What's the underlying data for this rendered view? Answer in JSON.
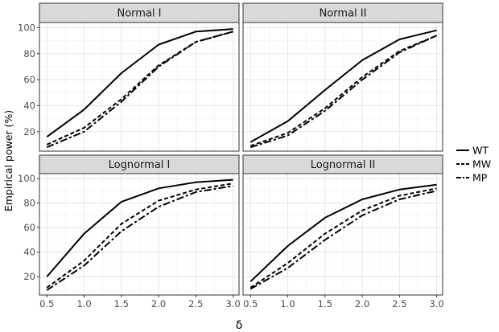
{
  "chart_data": {
    "type": "line",
    "xlabel": "δ",
    "ylabel": "Empirical power (%)",
    "x": [
      0.5,
      1.0,
      1.5,
      2.0,
      2.5,
      3.0
    ],
    "x_tick_labels": [
      "0.5",
      "1.0",
      "1.5",
      "2.0",
      "2.5",
      "3.0"
    ],
    "y_ticks": [
      20,
      40,
      60,
      80,
      100
    ],
    "ylim": [
      5,
      104
    ],
    "xlim": [
      0.4,
      3.08
    ],
    "grid": true,
    "legend_position": "right",
    "legend": [
      {
        "name": "WT",
        "dash": "solid"
      },
      {
        "name": "MW",
        "dash": "dashed"
      },
      {
        "name": "MP",
        "dash": "longdash"
      }
    ],
    "panels": [
      {
        "title": "Normal I",
        "series": [
          {
            "name": "WT",
            "values": [
              16,
              37,
              65,
              87,
              97,
              99
            ]
          },
          {
            "name": "MW",
            "values": [
              10,
              23,
              45,
              71,
              89,
              97
            ]
          },
          {
            "name": "MP",
            "values": [
              8,
              20,
              43,
              70,
              89,
              97
            ]
          }
        ]
      },
      {
        "title": "Normal II",
        "series": [
          {
            "name": "WT",
            "values": [
              12,
              28,
              52,
              75,
              91,
              98
            ]
          },
          {
            "name": "MW",
            "values": [
              9,
              19,
              38,
              62,
              82,
              94
            ]
          },
          {
            "name": "MP",
            "values": [
              8,
              17,
              36,
              60,
              81,
              94
            ]
          }
        ]
      },
      {
        "title": "Lognormal I",
        "series": [
          {
            "name": "WT",
            "values": [
              20,
              55,
              81,
              92,
              97,
              99
            ]
          },
          {
            "name": "MW",
            "values": [
              11,
              33,
              63,
              82,
              91,
              96
            ]
          },
          {
            "name": "MP",
            "values": [
              9,
              29,
              57,
              77,
              89,
              94
            ]
          }
        ]
      },
      {
        "title": "Lognormal II",
        "series": [
          {
            "name": "WT",
            "values": [
              16,
              45,
              68,
              83,
              91,
              95
            ]
          },
          {
            "name": "MW",
            "values": [
              11,
              31,
              55,
              74,
              86,
              92
            ]
          },
          {
            "name": "MP",
            "values": [
              10,
              27,
              50,
              70,
              83,
              90
            ]
          }
        ]
      }
    ]
  }
}
